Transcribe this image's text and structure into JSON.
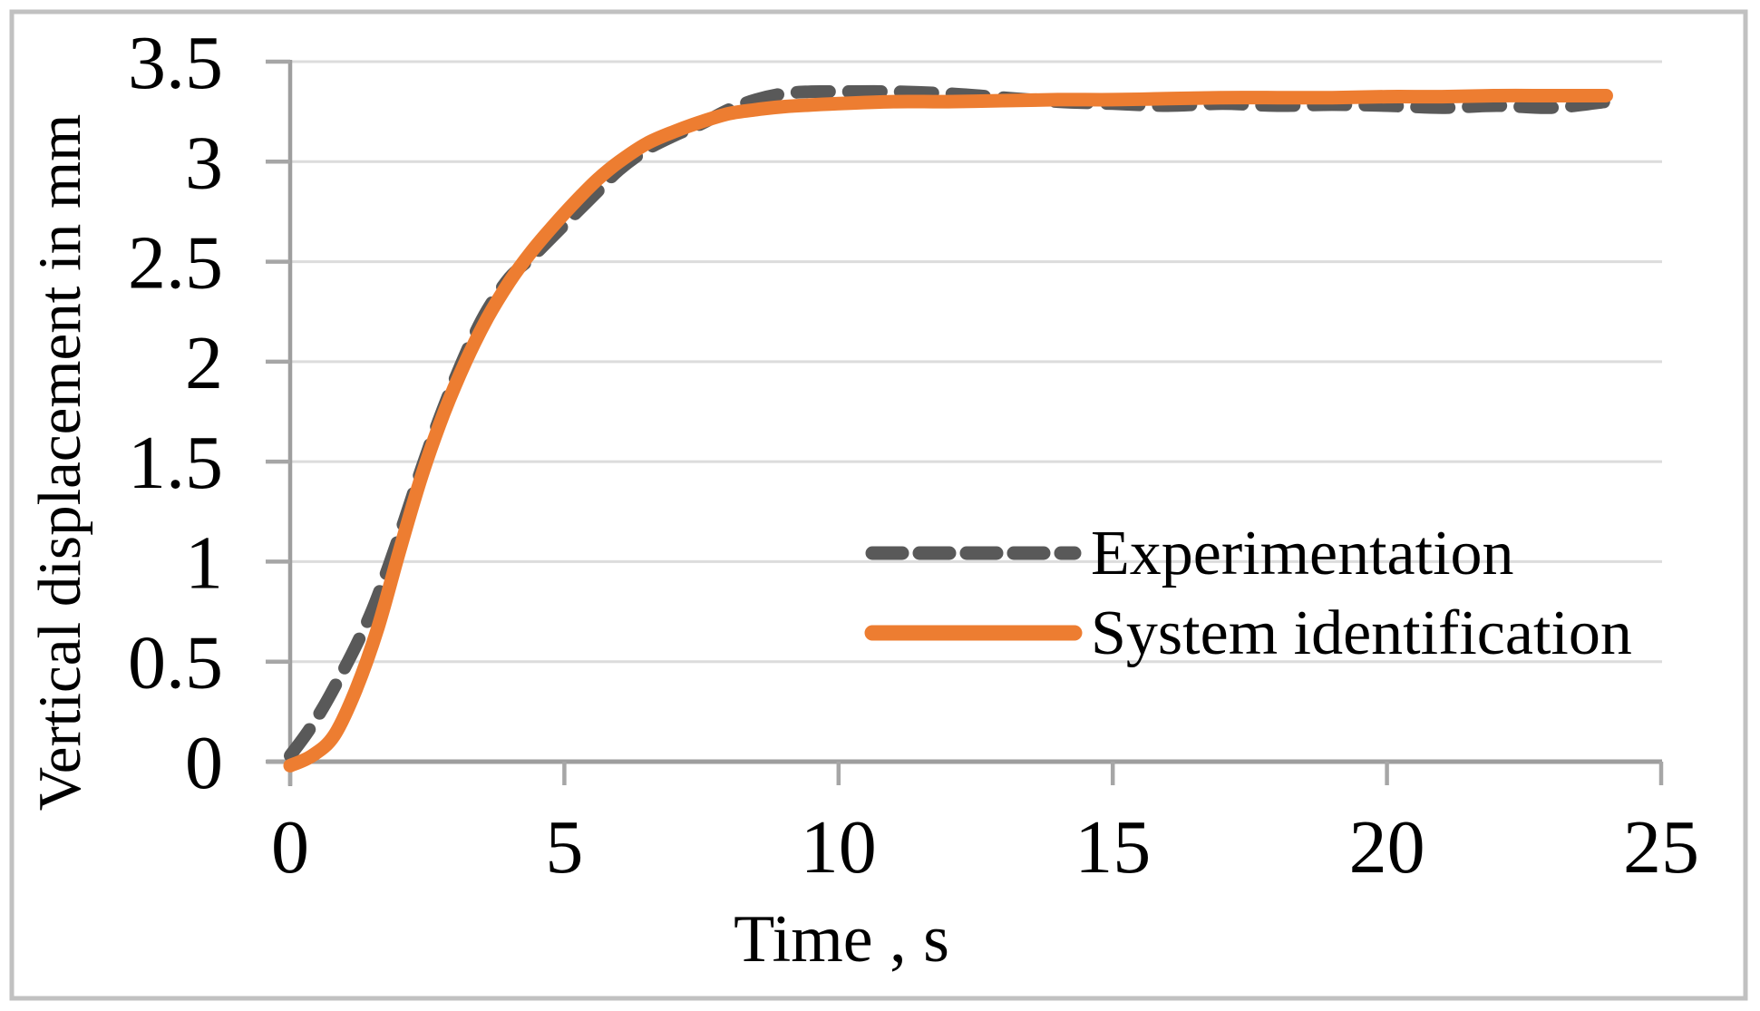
{
  "chart_data": {
    "type": "line",
    "title": "",
    "xlabel": "Time , s",
    "ylabel": "Vertical displacement in mm",
    "xlim": [
      0,
      25
    ],
    "ylim": [
      0,
      3.5
    ],
    "xticks": [
      0,
      5,
      10,
      15,
      20,
      25
    ],
    "xtick_labels": [
      "0",
      "5",
      "10",
      "15",
      "20",
      "25"
    ],
    "yticks": [
      0,
      0.5,
      1,
      1.5,
      2,
      2.5,
      3,
      3.5
    ],
    "ytick_labels": [
      "0",
      "0.5",
      "1",
      "1.5",
      "2",
      "2.5",
      "3",
      "3.5"
    ],
    "grid": "horizontal-only",
    "legend_position": "inside-right-middle",
    "series": [
      {
        "name": "Experimentation",
        "style": "dashed",
        "color": "#595959",
        "points": [
          [
            0,
            0.03
          ],
          [
            0.3,
            0.14
          ],
          [
            0.6,
            0.27
          ],
          [
            0.9,
            0.42
          ],
          [
            1.2,
            0.58
          ],
          [
            1.5,
            0.76
          ],
          [
            1.8,
            0.98
          ],
          [
            2.1,
            1.22
          ],
          [
            2.4,
            1.47
          ],
          [
            2.7,
            1.7
          ],
          [
            3.0,
            1.91
          ],
          [
            3.3,
            2.1
          ],
          [
            3.6,
            2.26
          ],
          [
            4.0,
            2.42
          ],
          [
            4.4,
            2.52
          ],
          [
            4.8,
            2.63
          ],
          [
            5.2,
            2.74
          ],
          [
            5.6,
            2.85
          ],
          [
            6.0,
            2.96
          ],
          [
            6.5,
            3.06
          ],
          [
            7.0,
            3.13
          ],
          [
            7.5,
            3.19
          ],
          [
            8.0,
            3.26
          ],
          [
            8.5,
            3.31
          ],
          [
            9.0,
            3.34
          ],
          [
            9.5,
            3.35
          ],
          [
            10,
            3.35
          ],
          [
            11,
            3.35
          ],
          [
            12,
            3.34
          ],
          [
            13,
            3.32
          ],
          [
            14,
            3.3
          ],
          [
            15,
            3.29
          ],
          [
            16,
            3.28
          ],
          [
            17,
            3.29
          ],
          [
            18,
            3.28
          ],
          [
            19,
            3.285
          ],
          [
            20,
            3.28
          ],
          [
            21,
            3.27
          ],
          [
            22,
            3.28
          ],
          [
            23,
            3.27
          ],
          [
            24,
            3.3
          ]
        ]
      },
      {
        "name": "System identification",
        "style": "solid",
        "color": "#ED7D31",
        "points": [
          [
            0,
            -0.02
          ],
          [
            0.4,
            0.03
          ],
          [
            0.8,
            0.13
          ],
          [
            1.2,
            0.36
          ],
          [
            1.6,
            0.67
          ],
          [
            2.0,
            1.06
          ],
          [
            2.4,
            1.43
          ],
          [
            2.8,
            1.74
          ],
          [
            3.2,
            2.0
          ],
          [
            3.6,
            2.22
          ],
          [
            4.0,
            2.4
          ],
          [
            4.4,
            2.55
          ],
          [
            4.8,
            2.68
          ],
          [
            5.2,
            2.8
          ],
          [
            5.6,
            2.91
          ],
          [
            6.0,
            3.0
          ],
          [
            6.5,
            3.09
          ],
          [
            7.0,
            3.15
          ],
          [
            7.5,
            3.2
          ],
          [
            8.0,
            3.24
          ],
          [
            8.5,
            3.26
          ],
          [
            9.0,
            3.275
          ],
          [
            10,
            3.29
          ],
          [
            11,
            3.3
          ],
          [
            12,
            3.3
          ],
          [
            13,
            3.305
          ],
          [
            14,
            3.31
          ],
          [
            15,
            3.31
          ],
          [
            16,
            3.315
          ],
          [
            17,
            3.32
          ],
          [
            18,
            3.32
          ],
          [
            19,
            3.32
          ],
          [
            20,
            3.325
          ],
          [
            21,
            3.325
          ],
          [
            22,
            3.33
          ],
          [
            23,
            3.33
          ],
          [
            24,
            3.33
          ]
        ]
      }
    ],
    "colors": {
      "axis": "#9E9E9E",
      "tick": "#A6A6A6",
      "gridline": "#DCDCDC",
      "figure_border": "#C1C1C1",
      "text": "#000000",
      "background": "#FFFFFF"
    }
  }
}
